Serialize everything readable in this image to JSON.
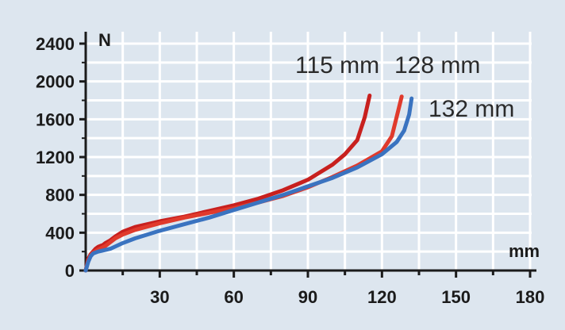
{
  "chart_data": {
    "type": "line",
    "xlabel": "mm",
    "ylabel": "N",
    "xlim": [
      0,
      180
    ],
    "ylim": [
      0,
      2400
    ],
    "x_ticks": [
      30,
      60,
      90,
      120,
      150,
      180
    ],
    "y_ticks": [
      0,
      400,
      800,
      1200,
      1600,
      2000,
      2400
    ],
    "grid": true,
    "colors": {
      "background": "#dde6ef",
      "grid": "#ffffff",
      "red": "#c8201e",
      "red_light": "#e03a2c",
      "blue": "#3a73c0"
    },
    "series": [
      {
        "name": "115 mm",
        "color": "#c8201e",
        "points": [
          [
            0,
            0
          ],
          [
            1,
            120
          ],
          [
            2,
            170
          ],
          [
            3,
            200
          ],
          [
            4,
            230
          ],
          [
            5,
            250
          ],
          [
            6,
            260
          ],
          [
            7,
            270
          ],
          [
            8,
            290
          ],
          [
            10,
            320
          ],
          [
            12,
            360
          ],
          [
            15,
            410
          ],
          [
            20,
            460
          ],
          [
            30,
            520
          ],
          [
            40,
            570
          ],
          [
            50,
            630
          ],
          [
            60,
            690
          ],
          [
            70,
            760
          ],
          [
            80,
            850
          ],
          [
            90,
            960
          ],
          [
            100,
            1120
          ],
          [
            105,
            1230
          ],
          [
            110,
            1380
          ],
          [
            113,
            1620
          ],
          [
            115,
            1850
          ]
        ]
      },
      {
        "name": "128 mm",
        "color": "#e03a2c",
        "points": [
          [
            0,
            0
          ],
          [
            1,
            100
          ],
          [
            2,
            160
          ],
          [
            3,
            190
          ],
          [
            5,
            220
          ],
          [
            8,
            260
          ],
          [
            10,
            300
          ],
          [
            12,
            340
          ],
          [
            15,
            380
          ],
          [
            20,
            430
          ],
          [
            30,
            500
          ],
          [
            40,
            560
          ],
          [
            50,
            610
          ],
          [
            60,
            660
          ],
          [
            70,
            720
          ],
          [
            80,
            790
          ],
          [
            90,
            880
          ],
          [
            100,
            990
          ],
          [
            110,
            1110
          ],
          [
            120,
            1260
          ],
          [
            124,
            1420
          ],
          [
            126,
            1630
          ],
          [
            128,
            1840
          ]
        ]
      },
      {
        "name": "132 mm",
        "color": "#3a73c0",
        "points": [
          [
            0,
            0
          ],
          [
            1,
            90
          ],
          [
            2,
            150
          ],
          [
            3,
            180
          ],
          [
            5,
            200
          ],
          [
            10,
            230
          ],
          [
            15,
            290
          ],
          [
            20,
            340
          ],
          [
            30,
            420
          ],
          [
            40,
            490
          ],
          [
            50,
            560
          ],
          [
            60,
            640
          ],
          [
            70,
            720
          ],
          [
            80,
            800
          ],
          [
            90,
            890
          ],
          [
            100,
            980
          ],
          [
            110,
            1090
          ],
          [
            120,
            1230
          ],
          [
            126,
            1360
          ],
          [
            129,
            1480
          ],
          [
            131,
            1650
          ],
          [
            132,
            1820
          ]
        ]
      }
    ]
  }
}
